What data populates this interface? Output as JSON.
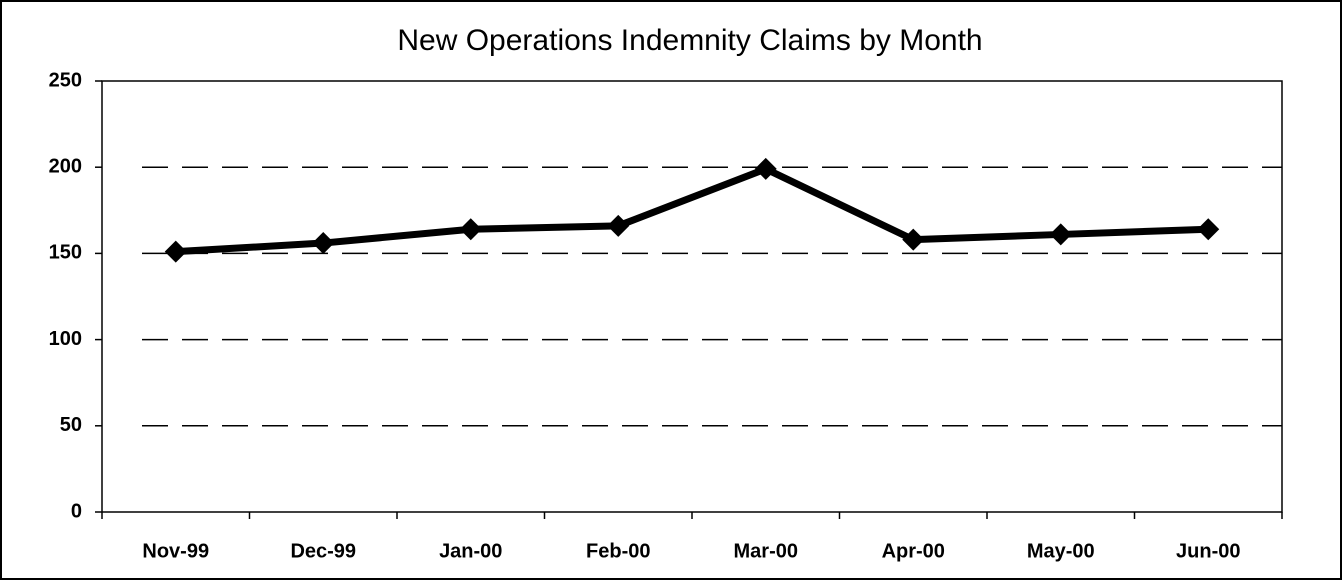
{
  "chart_data": {
    "type": "line",
    "title": "New Operations Indemnity Claims by Month",
    "categories": [
      "Nov-99",
      "Dec-99",
      "Jan-00",
      "Feb-00",
      "Mar-00",
      "Apr-00",
      "May-00",
      "Jun-00"
    ],
    "values": [
      151,
      156,
      164,
      166,
      199,
      158,
      161,
      164
    ],
    "color": "#000000",
    "ylim": [
      0,
      250
    ],
    "yticks": [
      0,
      50,
      100,
      150,
      200,
      250
    ],
    "grid": true
  }
}
